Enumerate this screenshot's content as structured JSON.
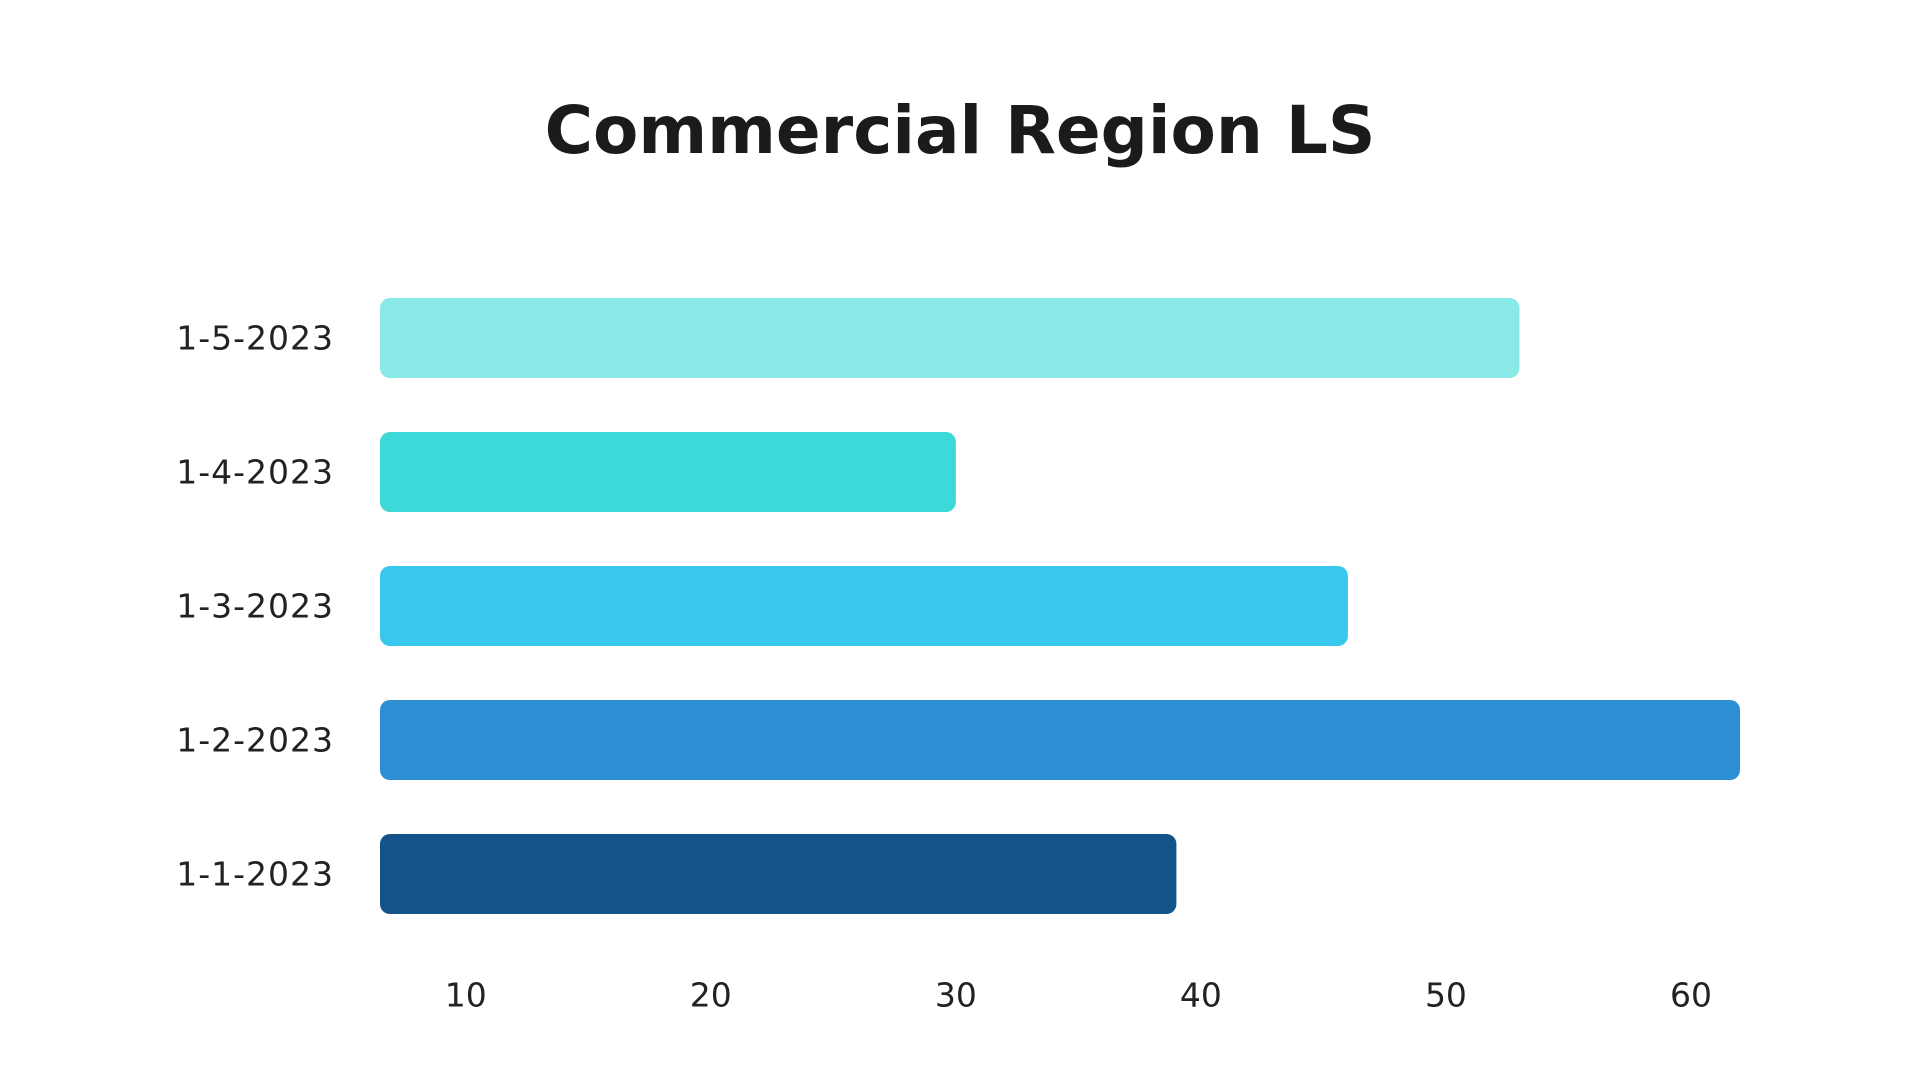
{
  "chart_data": {
    "type": "bar",
    "orientation": "horizontal",
    "title": "Commercial Region LS",
    "xlabel": "",
    "ylabel": "",
    "categories": [
      "1-5-2023",
      "1-4-2023",
      "1-3-2023",
      "1-2-2023",
      "1-1-2023"
    ],
    "values": [
      53,
      30,
      46,
      62,
      39
    ],
    "colors": [
      "#88E9E7",
      "#3DD9D8",
      "#38C8EE",
      "#2D90D5",
      "#145389"
    ],
    "xticks": [
      10,
      20,
      30,
      40,
      50,
      60
    ],
    "xlim": [
      6.5,
      62
    ],
    "grid": false,
    "legend": "none"
  }
}
